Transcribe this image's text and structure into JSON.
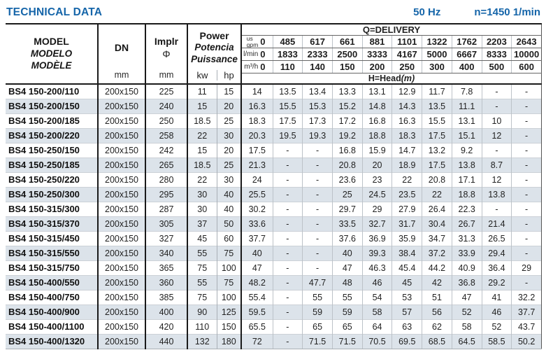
{
  "page": {
    "title": "TECHNICAL DATA",
    "frequency": "50 Hz",
    "speed": "n=1450 1/min"
  },
  "table": {
    "model_header": {
      "en": "MODEL",
      "es": "MODELO",
      "fr": "MODÈLE"
    },
    "dn_header": {
      "label": "DN",
      "unit": "mm"
    },
    "impeller_header": {
      "label": "Implr",
      "symbol": "Φ",
      "unit": "mm"
    },
    "power_header": {
      "en": "Power",
      "es": "Potencia",
      "fr": "Puissance",
      "kw": "kw",
      "hp": "hp"
    },
    "delivery_header": {
      "title": "Q=DELIVERY",
      "unit_rows": [
        {
          "unit_top": "us",
          "unit_bottom": "gpm",
          "zero": "0",
          "values": [
            "485",
            "617",
            "661",
            "881",
            "1101",
            "1322",
            "1762",
            "2203",
            "2643"
          ]
        },
        {
          "unit": "l/min",
          "zero": "0",
          "values": [
            "1833",
            "2333",
            "2500",
            "3333",
            "4167",
            "5000",
            "6667",
            "8333",
            "10000"
          ]
        },
        {
          "unit": "m³/h",
          "zero": "0",
          "values": [
            "110",
            "140",
            "150",
            "200",
            "250",
            "300",
            "400",
            "500",
            "600"
          ]
        }
      ],
      "head_title": "H=Head",
      "head_unit": "(m)"
    },
    "rows": [
      {
        "model": "BS4 150-200/110",
        "dn": "200x150",
        "impeller": "225",
        "kw": "11",
        "hp": "15",
        "head": [
          "14",
          "13.5",
          "13.4",
          "13.3",
          "13.1",
          "12.9",
          "11.7",
          "7.8",
          "-",
          "-"
        ]
      },
      {
        "model": "BS4 150-200/150",
        "dn": "200x150",
        "impeller": "240",
        "kw": "15",
        "hp": "20",
        "head": [
          "16.3",
          "15.5",
          "15.3",
          "15.2",
          "14.8",
          "14.3",
          "13.5",
          "11.1",
          "-",
          "-"
        ]
      },
      {
        "model": "BS4 150-200/185",
        "dn": "200x150",
        "impeller": "250",
        "kw": "18.5",
        "hp": "25",
        "head": [
          "18.3",
          "17.5",
          "17.3",
          "17.2",
          "16.8",
          "16.3",
          "15.5",
          "13.1",
          "10",
          "-"
        ]
      },
      {
        "model": "BS4 150-200/220",
        "dn": "200x150",
        "impeller": "258",
        "kw": "22",
        "hp": "30",
        "head": [
          "20.3",
          "19.5",
          "19.3",
          "19.2",
          "18.8",
          "18.3",
          "17.5",
          "15.1",
          "12",
          "-"
        ]
      },
      {
        "model": "BS4 150-250/150",
        "dn": "200x150",
        "impeller": "242",
        "kw": "15",
        "hp": "20",
        "head": [
          "17.5",
          "-",
          "-",
          "16.8",
          "15.9",
          "14.7",
          "13.2",
          "9.2",
          "-",
          "-"
        ]
      },
      {
        "model": "BS4 150-250/185",
        "dn": "200x150",
        "impeller": "265",
        "kw": "18.5",
        "hp": "25",
        "head": [
          "21.3",
          "-",
          "-",
          "20.8",
          "20",
          "18.9",
          "17.5",
          "13.8",
          "8.7",
          "-"
        ]
      },
      {
        "model": "BS4 150-250/220",
        "dn": "200x150",
        "impeller": "280",
        "kw": "22",
        "hp": "30",
        "head": [
          "24",
          "-",
          "-",
          "23.6",
          "23",
          "22",
          "20.8",
          "17.1",
          "12",
          "-"
        ]
      },
      {
        "model": "BS4 150-250/300",
        "dn": "200x150",
        "impeller": "295",
        "kw": "30",
        "hp": "40",
        "head": [
          "25.5",
          "-",
          "-",
          "25",
          "24.5",
          "23.5",
          "22",
          "18.8",
          "13.8",
          "-"
        ]
      },
      {
        "model": "BS4 150-315/300",
        "dn": "200x150",
        "impeller": "287",
        "kw": "30",
        "hp": "40",
        "head": [
          "30.2",
          "-",
          "-",
          "29.7",
          "29",
          "27.9",
          "26.4",
          "22.3",
          "-",
          "-"
        ]
      },
      {
        "model": "BS4 150-315/370",
        "dn": "200x150",
        "impeller": "305",
        "kw": "37",
        "hp": "50",
        "head": [
          "33.6",
          "-",
          "-",
          "33.5",
          "32.7",
          "31.7",
          "30.4",
          "26.7",
          "21.4",
          "-"
        ]
      },
      {
        "model": "BS4 150-315/450",
        "dn": "200x150",
        "impeller": "327",
        "kw": "45",
        "hp": "60",
        "head": [
          "37.7",
          "-",
          "-",
          "37.6",
          "36.9",
          "35.9",
          "34.7",
          "31.3",
          "26.5",
          "-"
        ]
      },
      {
        "model": "BS4 150-315/550",
        "dn": "200x150",
        "impeller": "340",
        "kw": "55",
        "hp": "75",
        "head": [
          "40",
          "-",
          "-",
          "40",
          "39.3",
          "38.4",
          "37.2",
          "33.9",
          "29.4",
          "-"
        ]
      },
      {
        "model": "BS4 150-315/750",
        "dn": "200x150",
        "impeller": "365",
        "kw": "75",
        "hp": "100",
        "head": [
          "47",
          "-",
          "-",
          "47",
          "46.3",
          "45.4",
          "44.2",
          "40.9",
          "36.4",
          "29"
        ]
      },
      {
        "model": "BS4 150-400/550",
        "dn": "200x150",
        "impeller": "360",
        "kw": "55",
        "hp": "75",
        "head": [
          "48.2",
          "-",
          "47.7",
          "48",
          "46",
          "45",
          "42",
          "36.8",
          "29.2",
          "-"
        ]
      },
      {
        "model": "BS4 150-400/750",
        "dn": "200x150",
        "impeller": "385",
        "kw": "75",
        "hp": "100",
        "head": [
          "55.4",
          "-",
          "55",
          "55",
          "54",
          "53",
          "51",
          "47",
          "41",
          "32.2"
        ]
      },
      {
        "model": "BS4 150-400/900",
        "dn": "200x150",
        "impeller": "400",
        "kw": "90",
        "hp": "125",
        "head": [
          "59.5",
          "-",
          "59",
          "59",
          "58",
          "57",
          "56",
          "52",
          "46",
          "37.7"
        ]
      },
      {
        "model": "BS4 150-400/1100",
        "dn": "200x150",
        "impeller": "420",
        "kw": "110",
        "hp": "150",
        "head": [
          "65.5",
          "-",
          "65",
          "65",
          "64",
          "63",
          "62",
          "58",
          "52",
          "43.7"
        ]
      },
      {
        "model": "BS4 150-400/1320",
        "dn": "200x150",
        "impeller": "440",
        "kw": "132",
        "hp": "180",
        "head": [
          "72",
          "-",
          "71.5",
          "71.5",
          "70.5",
          "69.5",
          "68.5",
          "64.5",
          "58.5",
          "50.2"
        ]
      }
    ]
  }
}
